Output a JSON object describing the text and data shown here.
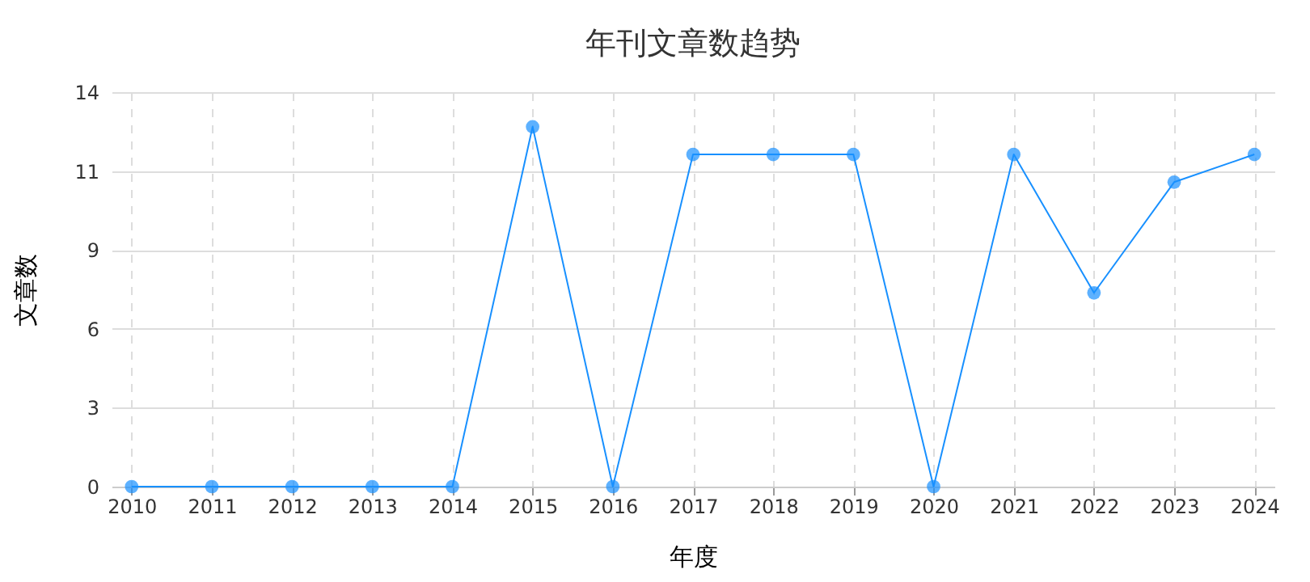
{
  "chart_data": {
    "type": "line",
    "title": "年刊文章数趋势",
    "xlabel": "年度",
    "ylabel": "文章数",
    "categories": [
      "2010",
      "2011",
      "2012",
      "2013",
      "2014",
      "2015",
      "2016",
      "2017",
      "2018",
      "2019",
      "2020",
      "2021",
      "2022",
      "2023",
      "2024"
    ],
    "series": [
      {
        "color": "#1890ff",
        "values": [
          0,
          0,
          0,
          0,
          0,
          13,
          0,
          12,
          12,
          12,
          0,
          12,
          7,
          11,
          12
        ]
      }
    ],
    "ylim": [
      0,
      14.25
    ],
    "yticks": [
      0,
      {
        "value": 2.85,
        "label": "3"
      },
      {
        "value": 5.7,
        "label": "6"
      },
      {
        "value": 8.55,
        "label": "9"
      },
      {
        "value": 11.4,
        "label": "11"
      },
      {
        "value": 14.25,
        "label": "14"
      }
    ],
    "grid": true,
    "marker": "circle",
    "line_style": "solid"
  }
}
